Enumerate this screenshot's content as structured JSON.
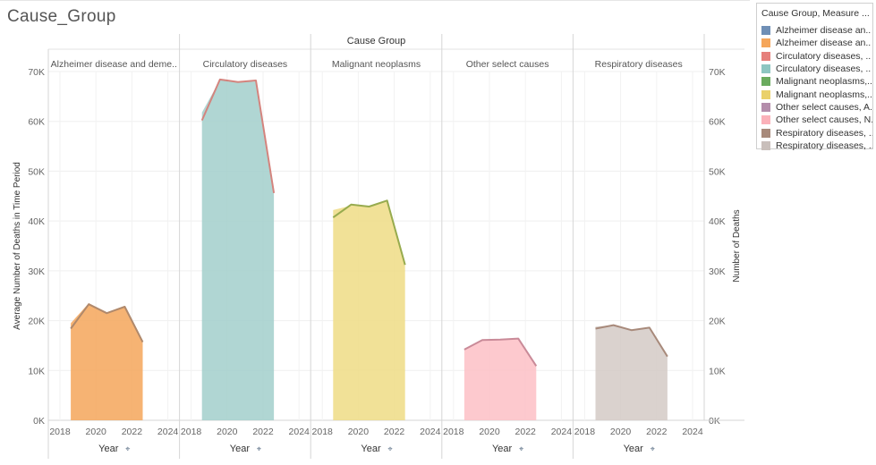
{
  "page": {
    "title": "Cause_Group"
  },
  "legend": {
    "title": "Cause Group, Measure ...",
    "items": [
      {
        "label": "Alzheimer disease an..",
        "color": "#6f8fb6"
      },
      {
        "label": "Alzheimer disease an..",
        "color": "#f5a65b"
      },
      {
        "label": "Circulatory diseases, ..",
        "color": "#e6807c"
      },
      {
        "label": "Circulatory diseases, ..",
        "color": "#8dc6c1"
      },
      {
        "label": "Malignant neoplasms,..",
        "color": "#6aab5e"
      },
      {
        "label": "Malignant neoplasms,..",
        "color": "#ead16b"
      },
      {
        "label": "Other select causes, A..",
        "color": "#b48dab"
      },
      {
        "label": "Other select causes, N..",
        "color": "#fbb1b9"
      },
      {
        "label": "Respiratory diseases, ..",
        "color": "#a88a7b"
      },
      {
        "label": "Respiratory diseases, ..",
        "color": "#c9bfbb"
      }
    ]
  },
  "chart_data": {
    "type": "area",
    "column_header": "Cause Group",
    "ylabel_left": "Average Number of Deaths in Time Period",
    "ylabel_right": "Number of Deaths",
    "xlabel": "Year",
    "x_ticks": [
      "2018",
      "2020",
      "2022",
      "2024"
    ],
    "y_ticks": [
      "0K",
      "10K",
      "20K",
      "30K",
      "40K",
      "50K",
      "60K",
      "70K"
    ],
    "ylim": [
      0,
      70000
    ],
    "xlim": [
      2018,
      2024
    ],
    "grid": true,
    "panels": [
      {
        "name": "Alzheimer disease and deme..",
        "area_color": "#f5a65b",
        "line_color": "#b0896c",
        "area": {
          "x": [
            2018.6,
            2019.6,
            2020.6,
            2021.6,
            2022.6
          ],
          "y": [
            19500,
            23500,
            21600,
            22700,
            15800
          ]
        },
        "line": {
          "x": [
            2018.6,
            2019.6,
            2020.6,
            2021.6,
            2022.6
          ],
          "y": [
            18400,
            23300,
            21500,
            22800,
            15700
          ]
        }
      },
      {
        "name": "Circulatory diseases",
        "area_color": "#a2cfcb",
        "line_color": "#d4847e",
        "area": {
          "x": [
            2018.6,
            2019.6,
            2020.6,
            2021.6,
            2022.6
          ],
          "y": [
            61800,
            68300,
            67900,
            68000,
            45500
          ]
        },
        "line": {
          "x": [
            2018.6,
            2019.6,
            2020.6,
            2021.6,
            2022.6
          ],
          "y": [
            60200,
            68400,
            67900,
            68200,
            45600
          ]
        }
      },
      {
        "name": "Malignant neoplasms",
        "area_color": "#eedc85",
        "line_color": "#97ab4e",
        "area": {
          "x": [
            2018.6,
            2019.6,
            2020.6,
            2021.6,
            2022.6
          ],
          "y": [
            42200,
            43100,
            42900,
            43900,
            31000
          ]
        },
        "line": {
          "x": [
            2018.6,
            2019.6,
            2020.6,
            2021.6,
            2022.6
          ],
          "y": [
            40700,
            43300,
            42900,
            44100,
            31200
          ]
        }
      },
      {
        "name": "Other select causes",
        "area_color": "#fdc0c6",
        "line_color": "#c98a98",
        "area": {
          "x": [
            2018.6,
            2019.6,
            2020.6,
            2021.6,
            2022.6
          ],
          "y": [
            14300,
            16100,
            16200,
            16300,
            10800
          ]
        },
        "line": {
          "x": [
            2018.6,
            2019.6,
            2020.6,
            2021.6,
            2022.6
          ],
          "y": [
            14200,
            16100,
            16200,
            16400,
            10900
          ]
        }
      },
      {
        "name": "Respiratory diseases",
        "area_color": "#d4cac6",
        "line_color": "#a88a7b",
        "area": {
          "x": [
            2018.6,
            2019.6,
            2020.6,
            2021.6,
            2022.6
          ],
          "y": [
            18800,
            19100,
            18000,
            18600,
            12900
          ]
        },
        "line": {
          "x": [
            2018.6,
            2019.6,
            2020.6,
            2021.6,
            2022.6
          ],
          "y": [
            18400,
            19100,
            18100,
            18600,
            12800
          ]
        }
      }
    ]
  }
}
